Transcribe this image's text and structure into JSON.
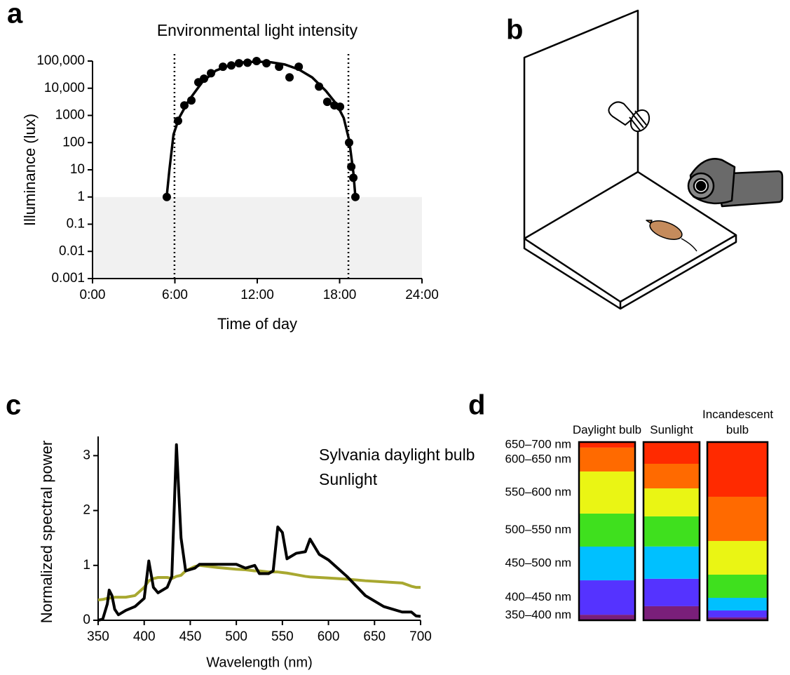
{
  "illustration_panel": "b",
  "chart_data": [
    {
      "type": "scatter",
      "panel": "a",
      "title": "Environmental light intensity",
      "x_label": "Time of day",
      "y_label": "Illuminance (lux)",
      "log_y": true,
      "color": "#000000",
      "x": [
        5.41,
        6.23,
        6.69,
        7.2,
        7.71,
        8.12,
        8.63,
        9.5,
        10.11,
        10.67,
        11.29,
        11.95,
        12.67,
        13.59,
        14.35,
        15.02,
        16.5,
        17.1,
        17.62,
        18.03,
        18.69,
        18.85,
        19.0,
        19.15
      ],
      "values": [
        1,
        631,
        2340,
        3550,
        16600,
        22400,
        35500,
        61600,
        69000,
        83000,
        87000,
        100000,
        83000,
        61600,
        25100,
        61600,
        11500,
        3160,
        2340,
        2090,
        100,
        13,
        5.1,
        1
      ],
      "fit": {
        "x": [
          5.4,
          5.6,
          5.9,
          6.3,
          7,
          8,
          9,
          10,
          11,
          12,
          13,
          14,
          15,
          16,
          17,
          17.8,
          18.3,
          18.7,
          19.0,
          19.15
        ],
        "values": [
          1,
          10,
          200,
          800,
          3500,
          17000,
          45000,
          70000,
          90000,
          95000,
          90000,
          75000,
          50000,
          25000,
          8000,
          2500,
          800,
          120,
          8,
          1
        ]
      },
      "shade_below": 1,
      "shade_color": "#f1f1f1",
      "vlines": [
        5.97,
        18.64
      ],
      "xlim": [
        0,
        24
      ],
      "xticks": [
        {
          "value": 0,
          "label": "0:00"
        },
        {
          "value": 6,
          "label": "6:00"
        },
        {
          "value": 12,
          "label": "12:00"
        },
        {
          "value": 18,
          "label": "18:00"
        },
        {
          "value": 24,
          "label": "24:00"
        }
      ],
      "ylim": [
        0.001,
        100000
      ],
      "yticks": [
        {
          "value": 100000,
          "label": "100,000"
        },
        {
          "value": 10000,
          "label": "10,000"
        },
        1000,
        100,
        10,
        1,
        0.1,
        0.01,
        0.001
      ]
    },
    {
      "type": "line",
      "panel": "c",
      "x_label": "Wavelength (nm)",
      "y_label": "Normalized spectral power",
      "legend": "upper right",
      "x": [
        350,
        355,
        360,
        362,
        365,
        368,
        372,
        380,
        390,
        400,
        405,
        410,
        415,
        425,
        430,
        435,
        440,
        445,
        455,
        460,
        480,
        500,
        510,
        520,
        525,
        535,
        540,
        545,
        550,
        555,
        565,
        575,
        580,
        590,
        600,
        620,
        640,
        660,
        680,
        690,
        695,
        700
      ],
      "series": [
        {
          "name": "Sylvania daylight bulb",
          "color": "#000000",
          "values": [
            0,
            0.02,
            0.3,
            0.55,
            0.45,
            0.2,
            0.1,
            0.18,
            0.25,
            0.4,
            1.08,
            0.6,
            0.5,
            0.6,
            0.8,
            3.2,
            1.5,
            0.9,
            0.95,
            1.02,
            1.02,
            1.02,
            0.95,
            1.0,
            0.85,
            0.85,
            0.9,
            1.7,
            1.6,
            1.12,
            1.22,
            1.25,
            1.48,
            1.2,
            1.1,
            0.8,
            0.45,
            0.25,
            0.15,
            0.15,
            0.08,
            0.07
          ]
        },
        {
          "name": "Sunlight",
          "color": "#a8a830",
          "values": [
            0.37,
            0.38,
            0.4,
            0.4,
            0.41,
            0.42,
            0.42,
            0.42,
            0.45,
            0.6,
            0.72,
            0.76,
            0.78,
            0.78,
            0.76,
            0.8,
            0.82,
            0.9,
            0.98,
            1.0,
            0.96,
            0.93,
            0.92,
            0.9,
            0.9,
            0.88,
            0.88,
            0.88,
            0.87,
            0.86,
            0.83,
            0.8,
            0.79,
            0.78,
            0.77,
            0.75,
            0.72,
            0.7,
            0.68,
            0.62,
            0.6,
            0.6
          ]
        }
      ],
      "xlim": [
        350,
        700
      ],
      "xticks": [
        350,
        400,
        450,
        500,
        550,
        600,
        650,
        700
      ],
      "ylim": [
        0,
        3.35
      ],
      "yticks": [
        0,
        1,
        2,
        3
      ]
    },
    {
      "type": "stacked_bar",
      "panel": "d",
      "categories": [
        "Daylight bulb",
        "Sunlight",
        "Incandescent bulb"
      ],
      "series": [
        {
          "name": "350–400 nm",
          "color": "#7a1f7a",
          "values": [
            3.1,
            7.9,
            1.6
          ]
        },
        {
          "name": "400–450 nm",
          "color": "#5533ff",
          "values": [
            19.3,
            15.4,
            3.9
          ]
        },
        {
          "name": "450–500 nm",
          "color": "#00c0ff",
          "values": [
            18.9,
            18.1,
            7.1
          ]
        },
        {
          "name": "500–550 nm",
          "color": "#3fe01e",
          "values": [
            18.5,
            16.9,
            13
          ]
        },
        {
          "name": "550–600 nm",
          "color": "#eaf514",
          "values": [
            23.6,
            15.7,
            18.9
          ]
        },
        {
          "name": "600–650 nm",
          "color": "#ff6a00",
          "values": [
            13.4,
            13.8,
            24.8
          ]
        },
        {
          "name": "650–700 nm",
          "color": "#ff2a00",
          "values": [
            3.1,
            12.2,
            30.7
          ]
        }
      ]
    }
  ]
}
